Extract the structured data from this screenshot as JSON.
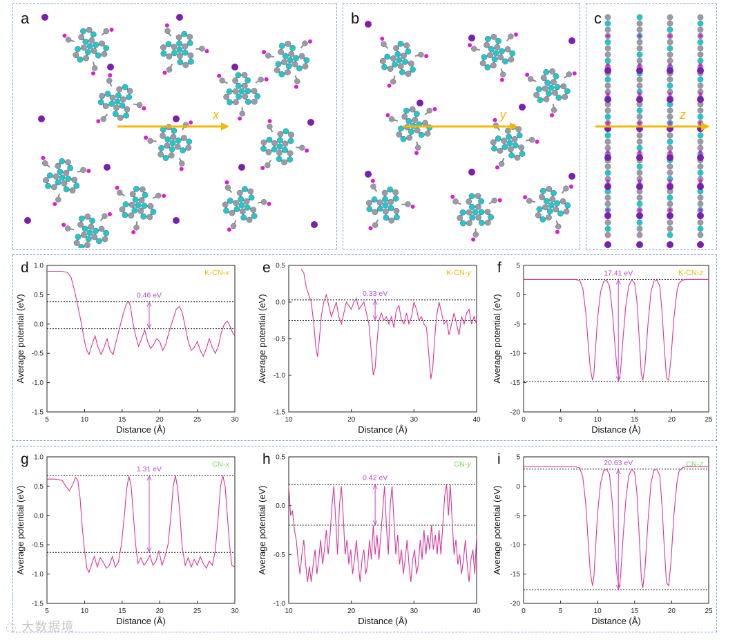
{
  "panels_top": [
    {
      "letter": "a",
      "axis_label": "x"
    },
    {
      "letter": "b",
      "axis_label": "y"
    },
    {
      "letter": "c",
      "axis_label": "z"
    }
  ],
  "colors": {
    "curve": "#d6359c",
    "arrow_bracket": "#cc44cc",
    "annot_text": "#b347d0",
    "kcn_label": "#f5b800",
    "cn_label": "#7ed957",
    "axis_arrow": "#f5b800",
    "carbon": "#9a9aa8",
    "nitrogen": "#1fc8cc",
    "hydrogen": "#d81fd0",
    "potassium": "#7a1fb0",
    "frame": "#7f9fd0"
  },
  "chart_data": [
    {
      "id": "d",
      "type": "line",
      "label_prefix": "K-CN-",
      "label_axis": "x",
      "label_color": "kcn",
      "xlabel": "Distance (Å)",
      "ylabel": "Average potential (eV)",
      "xlim": [
        5,
        30
      ],
      "ylim": [
        -1.5,
        1.0
      ],
      "xticks": [
        5,
        10,
        15,
        20,
        25,
        30
      ],
      "yticks": [
        -1.5,
        -1.0,
        -0.5,
        0.0,
        0.5,
        1.0
      ],
      "ytick_labels": [
        "-1.5",
        "-1.0",
        "-0.5",
        "0.0",
        "0.5",
        "1.0"
      ],
      "ref_levels": [
        0.38,
        -0.08
      ],
      "annotation": "0.46 eV",
      "annot_x": 18.6,
      "x": [
        5,
        6,
        7,
        7.7,
        8.2,
        8.7,
        9.2,
        9.6,
        10,
        10.3,
        10.6,
        11,
        11.4,
        11.8,
        12.2,
        12.6,
        13,
        13.4,
        13.8,
        14.2,
        14.7,
        15.2,
        15.6,
        15.9,
        16.1,
        16.4,
        16.8,
        17.2,
        17.6,
        18,
        18.4,
        18.8,
        19.2,
        19.6,
        20,
        20.4,
        20.8,
        21.2,
        21.7,
        22.2,
        22.6,
        23,
        23.4,
        23.8,
        24.2,
        24.6,
        25,
        25.4,
        25.8,
        26.2,
        26.6,
        27,
        27.4,
        27.8,
        28.2,
        28.6,
        29,
        29.4,
        29.7,
        30
      ],
      "y": [
        0.9,
        0.9,
        0.9,
        0.88,
        0.8,
        0.55,
        0.25,
        0.0,
        -0.3,
        -0.45,
        -0.52,
        -0.35,
        -0.2,
        -0.4,
        -0.52,
        -0.4,
        -0.25,
        -0.45,
        -0.52,
        -0.3,
        -0.05,
        0.2,
        0.35,
        0.38,
        0.3,
        0.05,
        -0.2,
        -0.38,
        -0.25,
        -0.1,
        -0.3,
        -0.42,
        -0.35,
        -0.25,
        -0.3,
        -0.45,
        -0.35,
        -0.15,
        0.05,
        0.25,
        0.3,
        0.2,
        -0.05,
        -0.3,
        -0.45,
        -0.4,
        -0.3,
        -0.45,
        -0.55,
        -0.42,
        -0.25,
        -0.4,
        -0.5,
        -0.38,
        -0.15,
        0.0,
        0.05,
        -0.05,
        -0.15,
        -0.2
      ]
    },
    {
      "id": "e",
      "type": "line",
      "label_prefix": "K-CN-",
      "label_axis": "y",
      "label_color": "kcn",
      "xlabel": "Distance (Å)",
      "ylabel": "Average potential (eV)",
      "xlim": [
        10,
        40
      ],
      "ylim": [
        -1.5,
        0.5
      ],
      "xticks": [
        10,
        20,
        30,
        40
      ],
      "yticks": [
        -1.5,
        -1.0,
        -0.5,
        0.0,
        0.5
      ],
      "ytick_labels": [
        "-1.5",
        "-1.0",
        "-0.5",
        "0.0",
        "0.5"
      ],
      "ref_levels": [
        0.03,
        -0.25
      ],
      "annotation": "0.33 eV",
      "annot_x": 23.8,
      "x": [
        12,
        12.4,
        12.8,
        13.2,
        13.6,
        14,
        14.3,
        14.6,
        14.9,
        15.2,
        15.6,
        16,
        16.4,
        16.8,
        17.2,
        17.6,
        18,
        18.4,
        18.8,
        19.2,
        19.6,
        20,
        20.4,
        20.8,
        21.2,
        21.6,
        22,
        22.4,
        22.8,
        23.2,
        23.5,
        23.8,
        24.1,
        24.4,
        24.8,
        25.2,
        25.6,
        26,
        26.4,
        26.8,
        27.2,
        27.6,
        28,
        28.4,
        28.8,
        29.2,
        29.6,
        30,
        30.4,
        30.8,
        31.2,
        31.6,
        32,
        32.4,
        32.7,
        33,
        33.3,
        33.6,
        34,
        34.4,
        34.8,
        35.2,
        35.6,
        36,
        36.4,
        36.8,
        37.2,
        37.6,
        38,
        38.4,
        38.8,
        39.2,
        39.6,
        40
      ],
      "y": [
        0.45,
        0.4,
        0.2,
        0.1,
        0.0,
        -0.3,
        -0.6,
        -0.75,
        -0.5,
        -0.2,
        0.0,
        0.1,
        -0.05,
        -0.2,
        -0.1,
        0.0,
        -0.2,
        -0.3,
        -0.15,
        0.0,
        -0.05,
        -0.1,
        0.0,
        0.05,
        -0.1,
        -0.05,
        0.0,
        -0.15,
        -0.3,
        -0.7,
        -1.0,
        -0.9,
        -0.55,
        -0.25,
        -0.15,
        -0.25,
        -0.2,
        -0.3,
        -0.2,
        -0.35,
        -0.1,
        -0.05,
        -0.25,
        -0.3,
        -0.15,
        -0.3,
        -0.2,
        0.0,
        -0.1,
        -0.25,
        -0.2,
        -0.3,
        -0.35,
        -0.75,
        -1.05,
        -0.9,
        -0.5,
        -0.2,
        0.0,
        -0.15,
        -0.3,
        -0.25,
        -0.45,
        -0.3,
        -0.15,
        -0.3,
        -0.45,
        -0.2,
        -0.3,
        -0.15,
        -0.1,
        -0.3,
        -0.2,
        -0.3
      ]
    },
    {
      "id": "f",
      "type": "line",
      "label_prefix": "K-CN-",
      "label_axis": "z",
      "label_color": "kcn",
      "xlabel": "Distance (Å)",
      "ylabel": "Average potential (eV)",
      "xlim": [
        0,
        25
      ],
      "ylim": [
        -20,
        5
      ],
      "xticks": [
        0,
        5,
        10,
        15,
        20,
        25
      ],
      "yticks": [
        -20,
        -15,
        -10,
        -5,
        0,
        5
      ],
      "ytick_labels": [
        "-20",
        "-15",
        "-10",
        "-5",
        "0",
        "5"
      ],
      "ref_levels": [
        2.6,
        -14.8
      ],
      "annotation": "17.41 eV",
      "annot_x": 12.8,
      "x": [
        0,
        1,
        2,
        3,
        4,
        5,
        6,
        7,
        7.6,
        8,
        8.4,
        8.7,
        9,
        9.3,
        9.5,
        9.7,
        10,
        10.4,
        10.8,
        11.2,
        11.6,
        12,
        12.3,
        12.6,
        12.9,
        13.1,
        13.4,
        13.8,
        14.2,
        14.6,
        15,
        15.3,
        15.6,
        15.9,
        16.1,
        16.4,
        16.8,
        17.2,
        17.6,
        18,
        18.4,
        18.7,
        19,
        19.3,
        19.6,
        19.9,
        20.3,
        20.7,
        21,
        21.5,
        22,
        23,
        24,
        25
      ],
      "y": [
        2.6,
        2.6,
        2.6,
        2.6,
        2.6,
        2.6,
        2.6,
        2.6,
        2.4,
        1.0,
        -3.0,
        -8.0,
        -12.5,
        -14.6,
        -13.5,
        -9.5,
        -4.0,
        0.5,
        2.2,
        2.5,
        1.5,
        -3.0,
        -8.0,
        -12.5,
        -14.6,
        -13.0,
        -8.0,
        -2.0,
        1.5,
        2.5,
        2.0,
        -1.0,
        -7.0,
        -13.5,
        -14.6,
        -12.0,
        -5.0,
        0.5,
        2.3,
        2.5,
        1.5,
        -3.0,
        -9.0,
        -14.2,
        -14.6,
        -11.0,
        -4.0,
        0.5,
        2.0,
        2.5,
        2.6,
        2.6,
        2.6,
        2.6
      ]
    },
    {
      "id": "g",
      "type": "line",
      "label_prefix": "CN-",
      "label_axis": "x",
      "label_color": "cn",
      "xlabel": "Distance (Å)",
      "ylabel": "Average potential (eV)",
      "xlim": [
        5,
        30
      ],
      "ylim": [
        -1.5,
        1.0
      ],
      "xticks": [
        5,
        10,
        15,
        20,
        25,
        30
      ],
      "yticks": [
        -1.5,
        -1.0,
        -0.5,
        0.0,
        0.5,
        1.0
      ],
      "ytick_labels": [
        "-1.5",
        "-1.0",
        "-0.5",
        "0.0",
        "0.5",
        "1.0"
      ],
      "ref_levels": [
        0.68,
        -0.63
      ],
      "annotation": "1.31 eV",
      "annot_x": 18.6,
      "x": [
        5,
        6,
        7,
        7.5,
        8,
        8.5,
        8.8,
        9.1,
        9.4,
        9.7,
        10,
        10.3,
        10.6,
        10.9,
        11.3,
        11.7,
        12.1,
        12.5,
        12.9,
        13.3,
        13.7,
        14.1,
        14.5,
        14.9,
        15.3,
        15.6,
        15.9,
        16.2,
        16.5,
        16.8,
        17.1,
        17.5,
        17.9,
        18.3,
        18.7,
        19.1,
        19.5,
        19.9,
        20.3,
        20.7,
        21.1,
        21.5,
        21.8,
        22.1,
        22.4,
        22.7,
        23,
        23.4,
        23.8,
        24.2,
        24.6,
        25,
        25.4,
        25.8,
        26.2,
        26.6,
        27,
        27.4,
        27.8,
        28.1,
        28.4,
        28.7,
        29,
        29.3,
        29.6,
        30
      ],
      "y": [
        0.62,
        0.62,
        0.6,
        0.5,
        0.42,
        0.55,
        0.65,
        0.6,
        0.3,
        -0.2,
        -0.6,
        -0.9,
        -0.97,
        -0.85,
        -0.7,
        -0.88,
        -0.72,
        -0.8,
        -0.9,
        -0.85,
        -0.7,
        -0.88,
        -0.8,
        -0.5,
        0.0,
        0.45,
        0.67,
        0.5,
        0.0,
        -0.5,
        -0.82,
        -0.72,
        -0.85,
        -0.78,
        -0.68,
        -0.85,
        -0.78,
        -0.6,
        -0.85,
        -0.7,
        -0.5,
        0.0,
        0.5,
        0.68,
        0.45,
        0.0,
        -0.55,
        -0.85,
        -0.72,
        -0.88,
        -0.75,
        -0.85,
        -0.7,
        -0.82,
        -0.9,
        -0.78,
        -0.85,
        -0.6,
        0.0,
        0.5,
        0.68,
        0.5,
        0.0,
        -0.5,
        -0.85,
        -0.88
      ]
    },
    {
      "id": "h",
      "type": "line",
      "label_prefix": "CN-",
      "label_axis": "y",
      "label_color": "cn",
      "xlabel": "Distance (Å)",
      "ylabel": "Average potential (eV)",
      "xlim": [
        10,
        40
      ],
      "ylim": [
        -1.0,
        0.5
      ],
      "xticks": [
        10,
        20,
        30,
        40
      ],
      "yticks": [
        -1.0,
        -0.5,
        0.0,
        0.5
      ],
      "ytick_labels": [
        "-1.0",
        "-0.5",
        "0.0",
        "0.5"
      ],
      "ref_levels": [
        0.22,
        -0.2
      ],
      "annotation": "0.42 eV",
      "annot_x": 23.8,
      "x": [
        10,
        10.3,
        10.6,
        10.9,
        11.2,
        11.5,
        11.8,
        12.1,
        12.4,
        12.7,
        13,
        13.3,
        13.6,
        13.9,
        14.2,
        14.5,
        14.8,
        15.1,
        15.4,
        15.7,
        16,
        16.3,
        16.6,
        16.9,
        17.2,
        17.5,
        17.8,
        18.1,
        18.4,
        18.7,
        19,
        19.3,
        19.6,
        19.9,
        20.2,
        20.5,
        20.8,
        21.1,
        21.4,
        21.7,
        22,
        22.3,
        22.6,
        22.9,
        23.2,
        23.5,
        23.8,
        24.1,
        24.4,
        24.7,
        25,
        25.3,
        25.6,
        25.9,
        26.2,
        26.5,
        26.8,
        27.1,
        27.4,
        27.7,
        28,
        28.3,
        28.6,
        28.9,
        29.2,
        29.5,
        29.8,
        30.1,
        30.4,
        30.7,
        31,
        31.3,
        31.6,
        31.9,
        32.2,
        32.5,
        32.8,
        33.1,
        33.4,
        33.7,
        34,
        34.3,
        34.6,
        34.9,
        35.2,
        35.5,
        35.8,
        36.1,
        36.4,
        36.7,
        37,
        37.3,
        37.6,
        37.9,
        38.2,
        38.5,
        38.8,
        39.1,
        39.4,
        39.7,
        40
      ],
      "y": [
        0.2,
        -0.1,
        -0.05,
        -0.25,
        -0.35,
        -0.55,
        -0.7,
        -0.5,
        -0.35,
        -0.6,
        -0.78,
        -0.62,
        -0.78,
        -0.6,
        -0.45,
        -0.7,
        -0.55,
        -0.35,
        -0.6,
        -0.45,
        -0.25,
        -0.5,
        -0.3,
        0.0,
        0.2,
        -0.15,
        -0.5,
        0.0,
        0.2,
        -0.1,
        -0.5,
        -0.35,
        -0.6,
        -0.45,
        -0.7,
        -0.55,
        -0.35,
        -0.6,
        -0.78,
        -0.55,
        -0.45,
        -0.7,
        -0.6,
        -0.35,
        -0.55,
        -0.2,
        -0.5,
        -0.3,
        -0.55,
        -0.3,
        -0.05,
        0.2,
        -0.2,
        -0.5,
        0.0,
        0.2,
        -0.15,
        -0.5,
        -0.3,
        -0.6,
        -0.45,
        -0.7,
        -0.55,
        -0.35,
        -0.6,
        -0.78,
        -0.55,
        -0.45,
        -0.7,
        -0.6,
        -0.35,
        -0.55,
        -0.25,
        -0.5,
        -0.3,
        -0.45,
        -0.2,
        -0.45,
        -0.3,
        -0.5,
        -0.25,
        -0.5,
        -0.2,
        0.1,
        0.22,
        -0.1,
        0.22,
        -0.15,
        -0.5,
        -0.35,
        -0.6,
        -0.5,
        -0.7,
        -0.55,
        -0.35,
        -0.6,
        -0.78,
        -0.55,
        -0.45,
        -0.7,
        -0.3
      ]
    },
    {
      "id": "i",
      "type": "line",
      "label_prefix": "CN-",
      "label_axis": "z",
      "label_color": "cn",
      "xlabel": "Distance (Å)",
      "ylabel": "Average potential (eV)",
      "xlim": [
        0,
        25
      ],
      "ylim": [
        -20,
        5
      ],
      "xticks": [
        0,
        5,
        10,
        15,
        20,
        25
      ],
      "yticks": [
        -20,
        -15,
        -10,
        -5,
        0,
        5
      ],
      "ytick_labels": [
        "-20",
        "-15",
        "-10",
        "-5",
        "0",
        "5"
      ],
      "ref_levels": [
        2.9,
        -17.7
      ],
      "annotation": "20.63 eV",
      "annot_x": 12.8,
      "x": [
        0,
        1,
        2,
        3,
        4,
        5,
        6,
        7,
        7.6,
        8,
        8.4,
        8.7,
        9,
        9.3,
        9.5,
        9.7,
        10,
        10.4,
        10.8,
        11.2,
        11.6,
        12,
        12.3,
        12.6,
        12.9,
        13.1,
        13.4,
        13.8,
        14.2,
        14.6,
        15,
        15.3,
        15.6,
        15.9,
        16.1,
        16.4,
        16.8,
        17.2,
        17.6,
        18,
        18.4,
        18.7,
        19,
        19.3,
        19.6,
        19.9,
        20.3,
        20.7,
        21,
        21.5,
        22,
        23,
        24,
        25
      ],
      "y": [
        3.3,
        3.3,
        3.3,
        3.3,
        3.3,
        3.3,
        3.3,
        3.3,
        3.1,
        1.5,
        -3.0,
        -9.0,
        -14.5,
        -17.0,
        -15.5,
        -11.0,
        -4.5,
        0.5,
        2.6,
        2.9,
        2.0,
        -3.0,
        -9.5,
        -15.0,
        -17.3,
        -15.5,
        -9.5,
        -2.5,
        1.8,
        2.9,
        2.3,
        -1.0,
        -8.0,
        -15.5,
        -17.4,
        -14.0,
        -6.0,
        0.5,
        2.7,
        2.9,
        1.8,
        -3.5,
        -10.5,
        -16.5,
        -17.0,
        -13.0,
        -5.0,
        0.5,
        2.6,
        3.2,
        3.3,
        3.3,
        3.3,
        3.3
      ]
    }
  ]
}
